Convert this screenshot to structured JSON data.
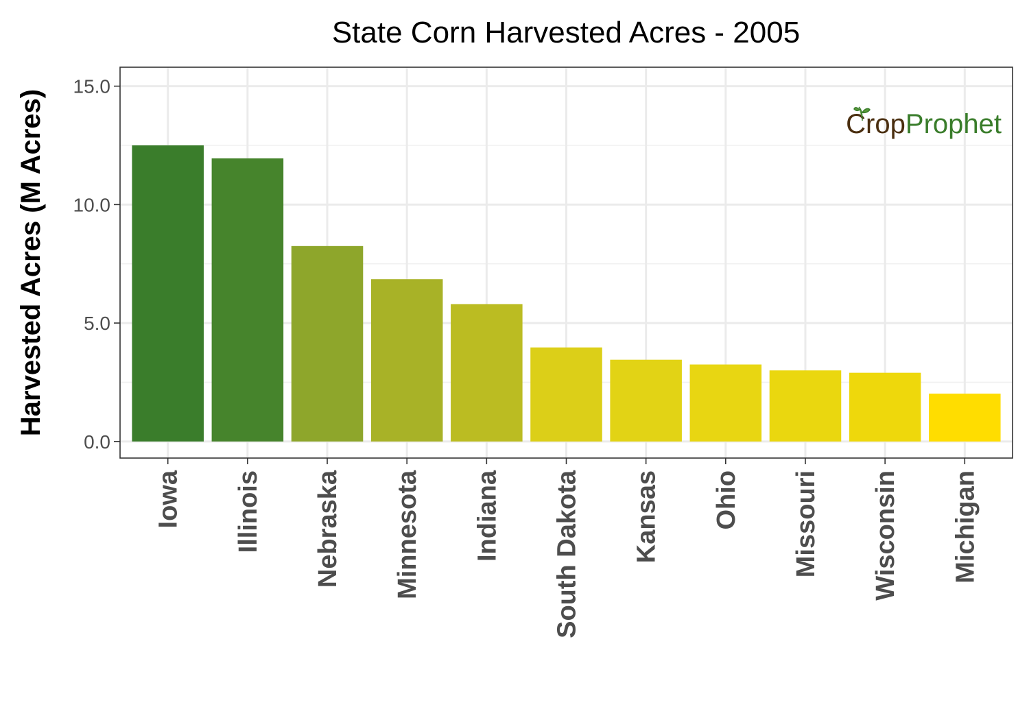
{
  "chart_data": {
    "type": "bar",
    "title": "State Corn Harvested Acres - 2005",
    "xlabel": "",
    "ylabel": "Harvested Acres (M Acres)",
    "ylim": [
      -0.7,
      15.8
    ],
    "yticks": [
      0,
      5,
      10,
      15
    ],
    "ytick_labels": [
      "0.0",
      "5.0",
      "10.0",
      "15.0"
    ],
    "grid": true,
    "legend": "none",
    "categories": [
      "Iowa",
      "Illinois",
      "Nebraska",
      "Minnesota",
      "Indiana",
      "South Dakota",
      "Kansas",
      "Ohio",
      "Missouri",
      "Wisconsin",
      "Michigan"
    ],
    "values": [
      12.5,
      11.95,
      8.25,
      6.85,
      5.8,
      3.97,
      3.45,
      3.25,
      3.0,
      2.9,
      2.02
    ],
    "colors": [
      "#3a7d2b",
      "#46842c",
      "#8ea62b",
      "#a8b227",
      "#bbbc22",
      "#dccf18",
      "#e2d315",
      "#e8d612",
      "#ead70f",
      "#eed80c",
      "#ffdd00"
    ]
  },
  "logo": {
    "part1": "Cr",
    "part2": "o",
    "part3": "p",
    "part4": "Prophet",
    "color_dark": "#4a2e0f",
    "color_green": "#3a7d2b"
  }
}
